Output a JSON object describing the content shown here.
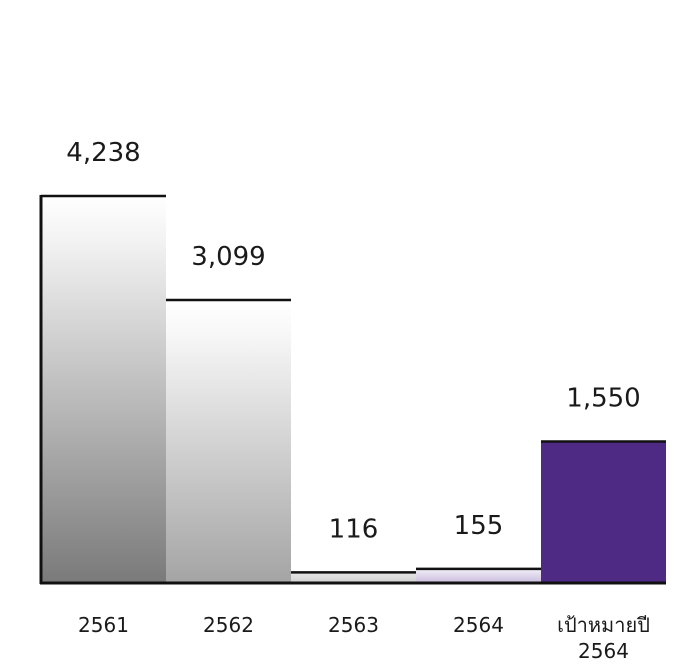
{
  "chart_data": {
    "type": "bar",
    "categories": [
      [
        "2561"
      ],
      [
        "2562"
      ],
      [
        "2563"
      ],
      [
        "2564"
      ],
      [
        "เป้าหมายปี",
        "2564"
      ]
    ],
    "values": [
      4238,
      3099,
      116,
      155,
      1550
    ],
    "value_labels": [
      "4,238",
      "3,099",
      "116",
      "155",
      "1,550"
    ],
    "title": "",
    "xlabel": "",
    "ylabel": "",
    "ylim": [
      0,
      4238
    ],
    "grid": false,
    "legend": "none",
    "bar_styles": [
      "gradient-gray",
      "gradient-gray-light",
      "flat-gray",
      "gradient-purple-light",
      "solid-purple"
    ],
    "colors": {
      "axis": "#111111",
      "bar_top_line": "#111111",
      "purple": "#4e2a84",
      "gray_dark": "#7a7a7a",
      "gray_light": "#f6f6f6"
    }
  }
}
